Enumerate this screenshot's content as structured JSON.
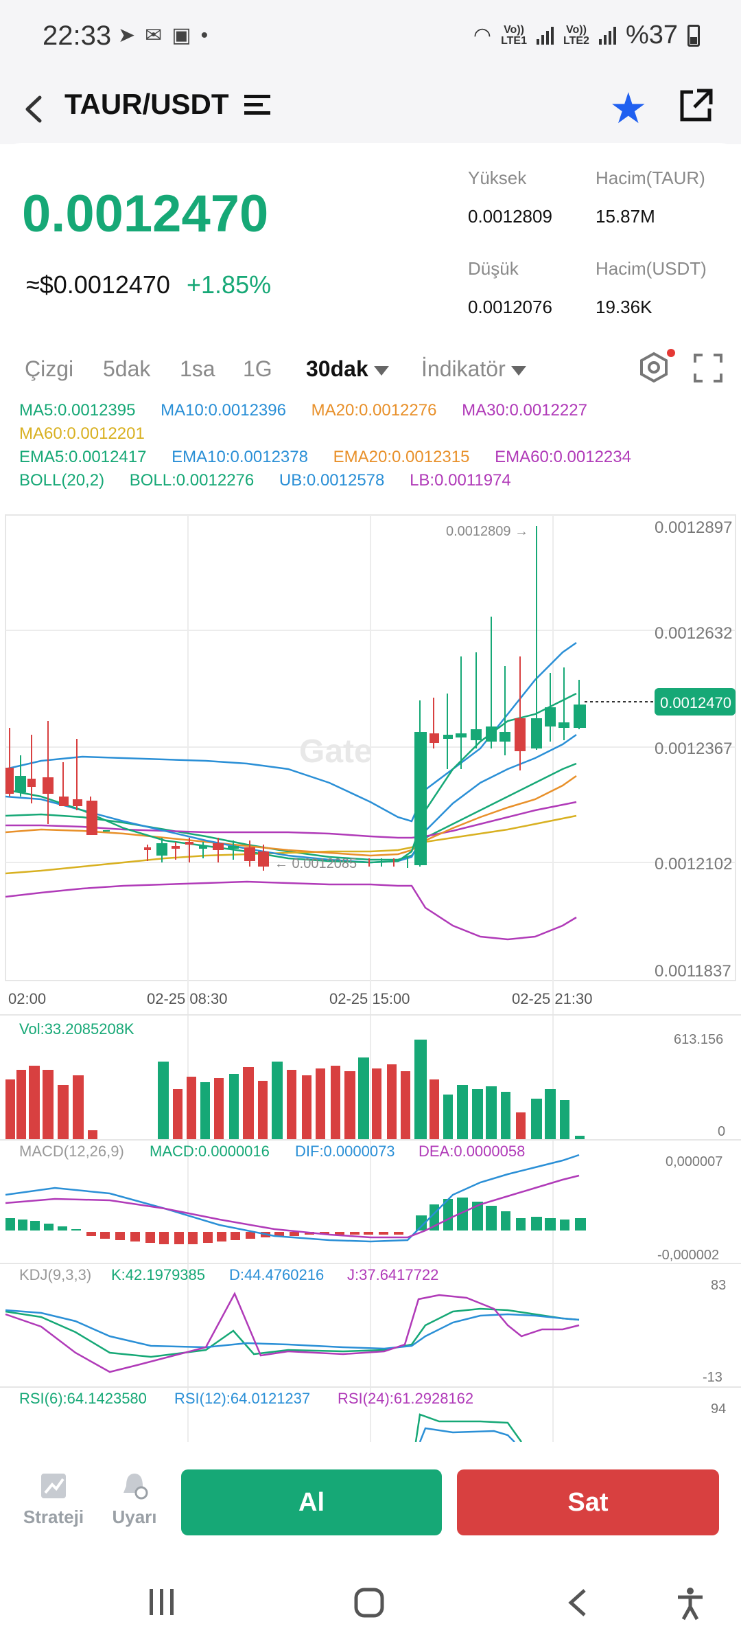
{
  "status_bar": {
    "time": "22:33",
    "lte1": "LTE1",
    "lte2": "LTE2",
    "vo1": "Vo))",
    "vo2": "Vo))",
    "battery": "%37"
  },
  "header": {
    "pair": "TAUR/USDT"
  },
  "price": {
    "last": "0.0012470",
    "usd": "≈$0.0012470",
    "change": "+1.85%"
  },
  "stats": {
    "high_label": "Yüksek",
    "high_value": "0.0012809",
    "vol_taur_label": "Hacim(TAUR)",
    "vol_taur_value": "15.87M",
    "low_label": "Düşük",
    "low_value": "0.0012076",
    "vol_usdt_label": "Hacim(USDT)",
    "vol_usdt_value": "19.36K"
  },
  "tabs": {
    "line": "Çizgi",
    "m5": "5dak",
    "h1": "1sa",
    "d1": "1G",
    "active": "30dak",
    "indicator": "İndikatör"
  },
  "indicators": {
    "ma5": "MA5:0.0012395",
    "ma10": "MA10:0.0012396",
    "ma20": "MA20:0.0012276",
    "ma30": "MA30:0.0012227",
    "ma60": "MA60:0.0012201",
    "ema5": "EMA5:0.0012417",
    "ema10": "EMA10:0.0012378",
    "ema20": "EMA20:0.0012315",
    "ema60": "EMA60:0.0012234",
    "boll_name": "BOLL(20,2)",
    "boll": "BOLL:0.0012276",
    "ub": "UB:0.0012578",
    "lb": "LB:0.0011974"
  },
  "chart_data": {
    "type": "candlestick",
    "y_ticks": [
      "0.0012897",
      "0.0012632",
      "0.0012367",
      "0.0012102",
      "0.0011837"
    ],
    "x_ticks": [
      "02:00",
      "02-25 08:30",
      "02-25 15:00",
      "02-25 21:30"
    ],
    "current_price": "0.0012470",
    "high_marker": "0.0012809 →",
    "low_marker": "← 0.0012085",
    "watermark": "Gate",
    "volume_label": "Vol:33.2085208K",
    "volume_max": "613.156",
    "volume_min": "0",
    "macd_name": "MACD(12,26,9)",
    "macd": "MACD:0.0000016",
    "dif": "DIF:0.0000073",
    "dea": "DEA:0.0000058",
    "macd_max": "0,000007",
    "macd_min": "-0,000002",
    "kdj_name": "KDJ(9,3,3)",
    "k": "K:42.1979385",
    "d": "D:44.4760216",
    "j": "J:37.6417722",
    "kdj_max": "83",
    "kdj_min": "-13",
    "rsi6": "RSI(6):64.1423580",
    "rsi12": "RSI(12):64.0121237",
    "rsi24": "RSI(24):61.2928162",
    "rsi_max": "94"
  },
  "actions": {
    "strategy": "Strateji",
    "alert": "Uyarı",
    "buy": "Al",
    "sell": "Sat"
  },
  "colors": {
    "up": "#16a876",
    "down": "#d84040",
    "ma5": "#16a876",
    "ma10": "#2a8fd6",
    "ma20": "#e8902a",
    "ma30": "#b03ab8",
    "ma60": "#d8b020"
  }
}
